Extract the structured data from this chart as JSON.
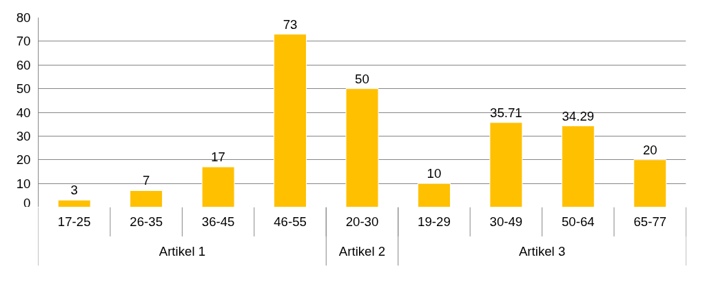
{
  "chart_data": {
    "type": "bar",
    "categories": [
      "17-25",
      "26-35",
      "36-45",
      "46-55",
      "20-30",
      "19-29",
      "30-49",
      "50-64",
      "65-77"
    ],
    "values": [
      3,
      7,
      17,
      73,
      50,
      10,
      35.71,
      34.29,
      20
    ],
    "color": "#ffc000",
    "ylim": [
      0,
      80
    ],
    "yticks": [
      0,
      10,
      20,
      30,
      40,
      50,
      60,
      70,
      80
    ],
    "grid": "y",
    "data_labels": true,
    "legend": false,
    "annotations": [
      "Artikel 1",
      "Artikel 2",
      "Artikel 3"
    ]
  }
}
